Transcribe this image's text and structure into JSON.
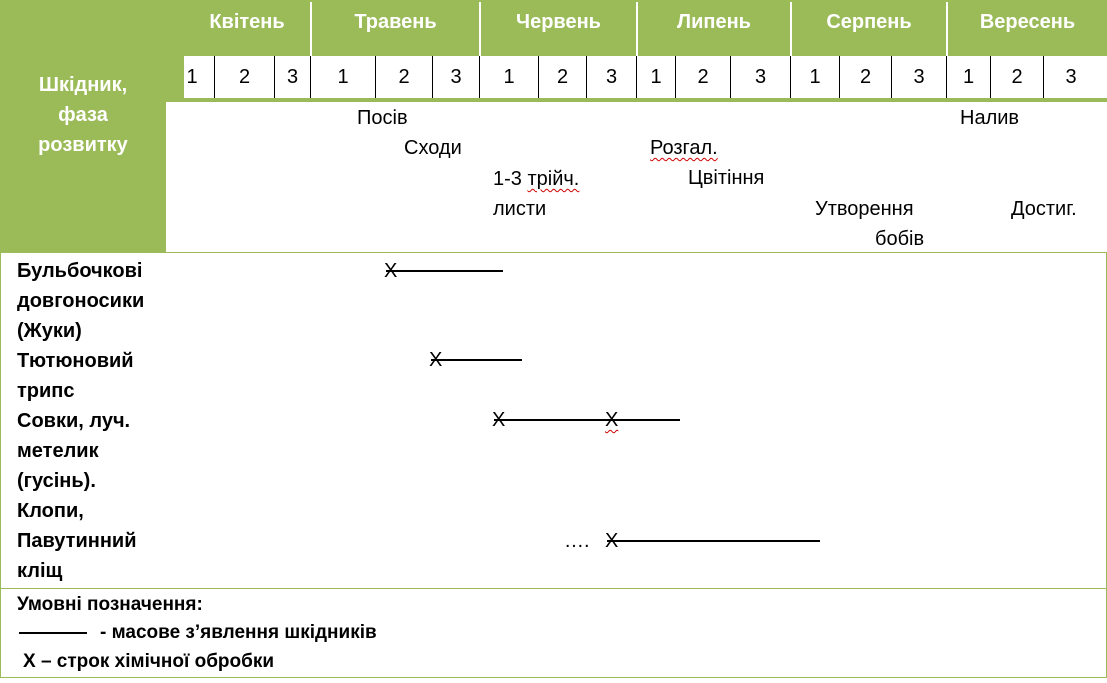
{
  "header": {
    "pest_column": [
      "Шкідник,",
      "фаза",
      "розвитку"
    ],
    "months": [
      "Квітень",
      "Травень",
      "Червень",
      "Липень",
      "Серпень",
      "Вересень"
    ],
    "decades": [
      "1",
      "2",
      "3",
      "1",
      "2",
      "3",
      "1",
      "2",
      "3",
      "1",
      "2",
      "3",
      "1",
      "2",
      "3",
      "1",
      "2",
      "3"
    ]
  },
  "phases": {
    "sowing": "Посів",
    "sprouts": "Сходи",
    "trifoliate_a": "1-3",
    "trifoliate_b": "трійч.",
    "trifoliate_c": "листи",
    "branching": "Розгал.",
    "flowering": "Цвітіння",
    "pod_a": "Утворення",
    "pod_b": "бобів",
    "filling": "Налив",
    "ripening": "Достиг."
  },
  "pests": [
    {
      "lines": [
        "Бульбочкові",
        "довгоносики",
        "(Жуки)"
      ],
      "mark": "Х"
    },
    {
      "lines": [
        "Тютюновий",
        "трипс"
      ],
      "mark": "Х"
    },
    {
      "lines": [
        "Совки, луч.",
        "метелик",
        "(гусінь)."
      ],
      "mark": "Х",
      "mark2": "Х"
    },
    {
      "lines": [
        "Клопи,",
        "Павутинний",
        "кліщ"
      ],
      "dots": "….",
      "mark": "Х"
    }
  ],
  "legend": {
    "title": "Умовні позначення:",
    "mass_label": "- масове з’явлення шкідників",
    "treatment_label": "Х – строк хімічної обробки"
  },
  "colors": {
    "header_green": "#9bbb59",
    "header_text": "#ffffff"
  }
}
